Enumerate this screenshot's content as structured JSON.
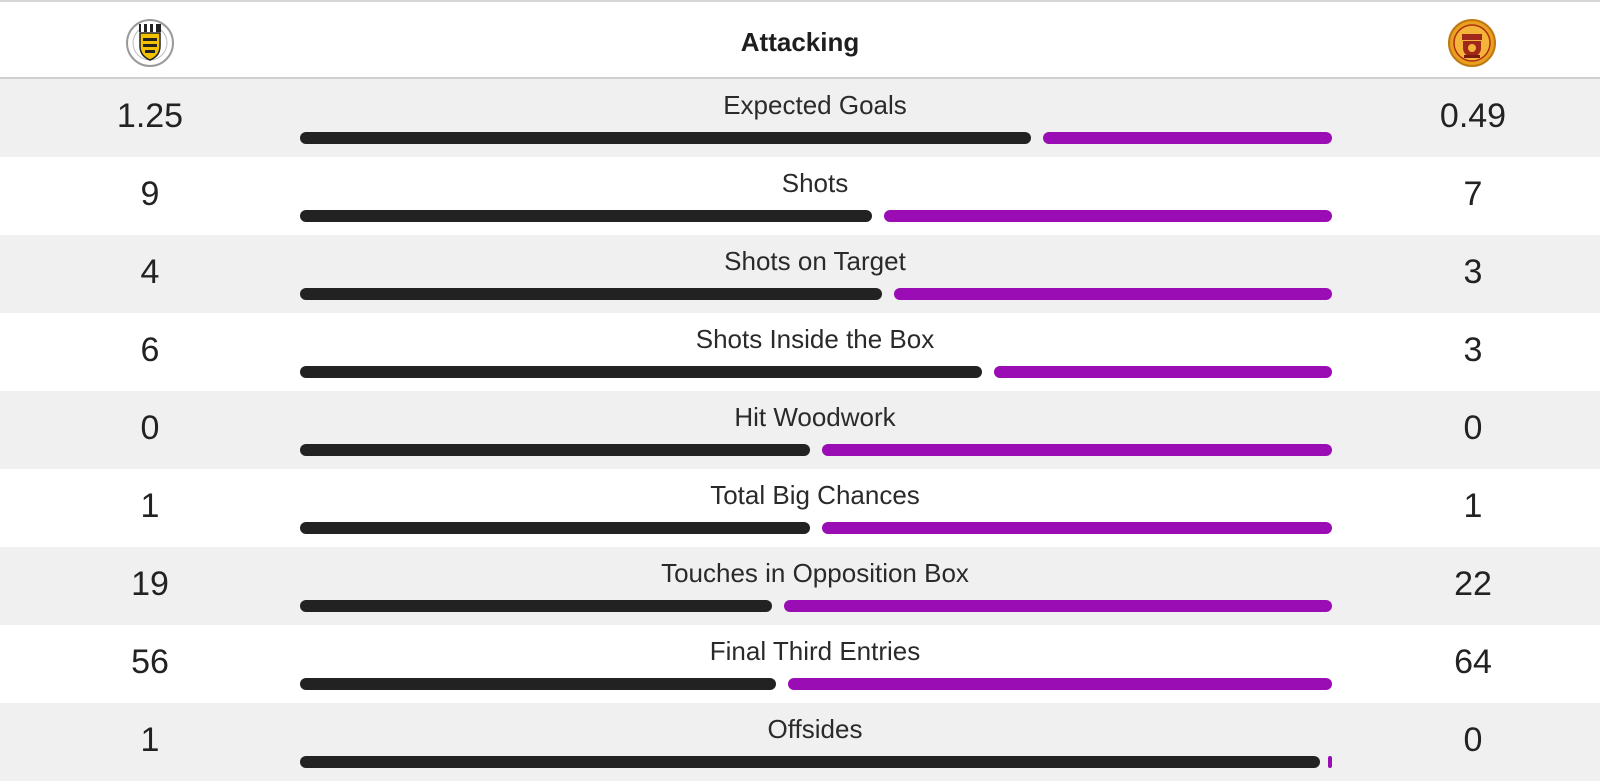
{
  "section": {
    "title": "Attacking"
  },
  "teams": {
    "home": {
      "crest": "st-mirren-crest",
      "bar_color": "#222222"
    },
    "away": {
      "crest": "motherwell-crest",
      "bar_color": "#9a0db4"
    }
  },
  "stats": [
    {
      "label": "Expected Goals",
      "home": "1.25",
      "away": "0.49",
      "home_share": 0.714
    },
    {
      "label": "Shots",
      "home": "9",
      "away": "7",
      "home_share": 0.56
    },
    {
      "label": "Shots on Target",
      "home": "4",
      "away": "3",
      "home_share": 0.57
    },
    {
      "label": "Shots Inside the Box",
      "home": "6",
      "away": "3",
      "home_share": 0.667
    },
    {
      "label": "Hit Woodwork",
      "home": "0",
      "away": "0",
      "home_share": 0.5
    },
    {
      "label": "Total Big Chances",
      "home": "1",
      "away": "1",
      "home_share": 0.5
    },
    {
      "label": "Touches in Opposition Box",
      "home": "19",
      "away": "22",
      "home_share": 0.463
    },
    {
      "label": "Final Third Entries",
      "home": "56",
      "away": "64",
      "home_share": 0.467
    },
    {
      "label": "Offsides",
      "home": "1",
      "away": "0",
      "home_share": 1.0
    }
  ]
}
